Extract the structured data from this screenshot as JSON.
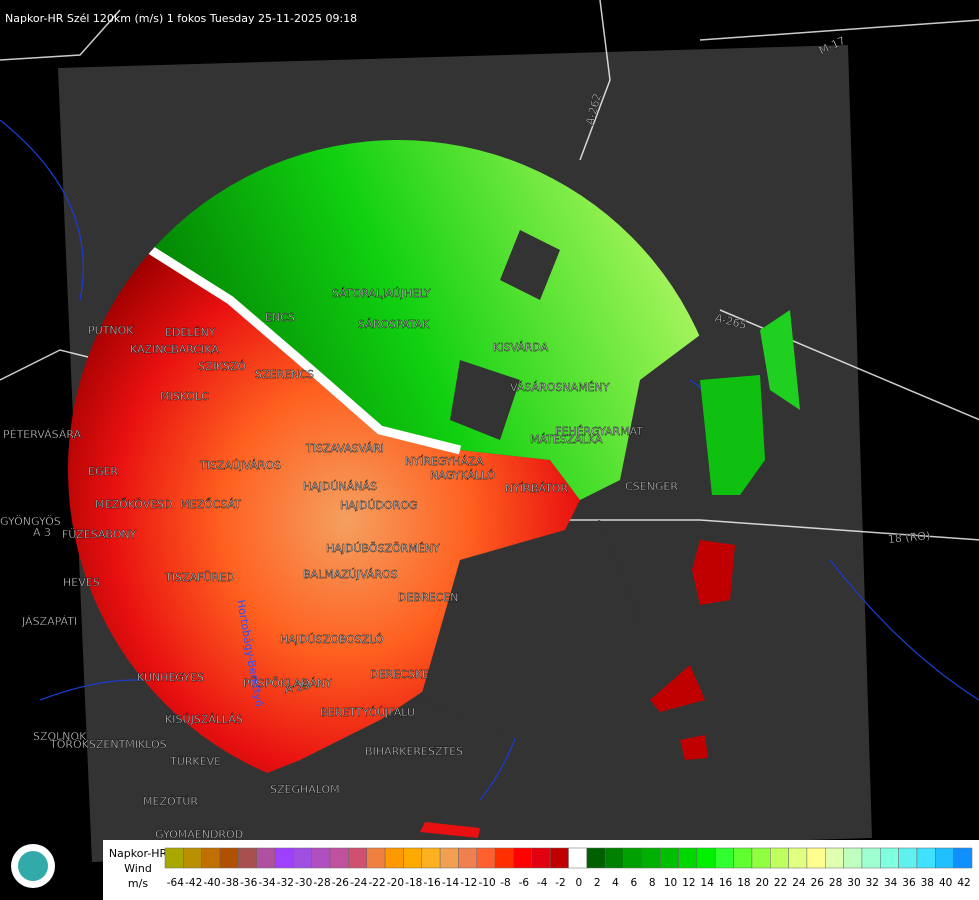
{
  "header": {
    "title": "Napkor-HR Szél 120km (m/s) 1 fokos Tuesday 25-11-2025 09:18"
  },
  "places": [
    "PUTNOK",
    "EDELÉNY",
    "KAZINCBARCIKA",
    "SZIKSZÓ",
    "SZERENCS",
    "MISKOLC",
    "ENCS",
    "SÁTORALJAÚJHELY",
    "SÁROSPATAK",
    "KISVÁRDA",
    "VÁSÁROSNAMÉNY",
    "MÁTÉSZALKA",
    "FEHÉRGYARMAT",
    "CSENGER",
    "PÉTERVÁSÁRA",
    "EGER",
    "TISZAÚJVÁROS",
    "TISZAVASVÁRI",
    "NYÍREGYHÁZA",
    "NAGYKÁLLÓ",
    "NYÍRBÁTOR",
    "HAJDÚNÁNÁS",
    "MEZŐKÖVESD",
    "MEZŐCSÁT",
    "HAJDÚDOROG",
    "GYÖNGYÖS",
    "FÜZESABONY",
    "HAJDÚBÖSZÖRMÉNY",
    "TISZAFÜRED",
    "HEVES",
    "BALMAZÚJVÁROS",
    "DEBRECEN",
    "JÁSZAPÁTI",
    "HAJDÚSZOBOSZLÓ",
    "DERECSKE",
    "KUNHEGYES",
    "PÜSPÖKLADÁNY",
    "BERETTYÓÚJFALU",
    "KISÚJSZÁLLÁS",
    "SZOLNOK",
    "TÖRÖKSZENTMIKLÓS",
    "BIHARKERESZTES",
    "TÚRKEVE",
    "SZEGHALOM",
    "MEZŐTÚR",
    "GYOMAENDRŐD"
  ],
  "roads": [
    "A-262",
    "M-17",
    "A-265",
    "18 (RO)",
    "A 3",
    "A 25"
  ],
  "rivers": [
    "Hortobágy-Berettyó"
  ],
  "legend": {
    "lines": [
      "Napkor-HR",
      "Wind",
      "m/s"
    ],
    "colors": [
      "#a8a800",
      "#b89000",
      "#c07000",
      "#b05000",
      "#a85050",
      "#b050a0",
      "#a040ff",
      "#a050e0",
      "#b050c0",
      "#c050a0",
      "#d05070",
      "#f08040",
      "#ff9900",
      "#ffaa00",
      "#ffb020",
      "#f0a050",
      "#f08050",
      "#ff6030",
      "#ff3000",
      "#ff0000",
      "#e00010",
      "#c00000",
      "#ffffff",
      "#006000",
      "#008000",
      "#00a000",
      "#00b000",
      "#00c000",
      "#00d800",
      "#00f000",
      "#30ff30",
      "#60ff30",
      "#90ff40",
      "#c0ff60",
      "#e0ff80",
      "#ffff90",
      "#e0ffb0",
      "#c0ffc0",
      "#a0ffd0",
      "#80ffe0",
      "#60f0f0",
      "#40e0ff",
      "#20c0ff",
      "#1090ff"
    ],
    "ticks": [
      -64,
      -42,
      -40,
      -38,
      -36,
      -34,
      -32,
      -30,
      -28,
      -26,
      -24,
      -22,
      -20,
      -18,
      -16,
      -14,
      -12,
      -10,
      -8,
      -6,
      -4,
      -2,
      0,
      2,
      4,
      6,
      8,
      10,
      12,
      14,
      16,
      18,
      20,
      22,
      24,
      26,
      28,
      30,
      32,
      34,
      36,
      38,
      40,
      42
    ]
  }
}
